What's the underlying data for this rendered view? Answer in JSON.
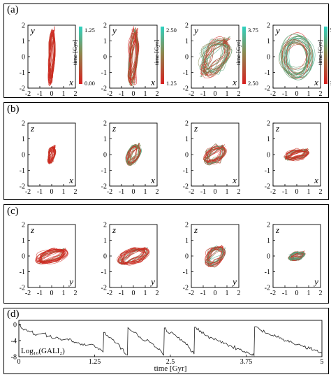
{
  "panels": {
    "a": {
      "tag": "(a)",
      "y_label": "y",
      "x_label": "x",
      "colorbar_label": "time [Gyr]",
      "plots": [
        {
          "cb_top": "1.25",
          "cb_bottom": "0.00"
        },
        {
          "cb_top": "2.50",
          "cb_bottom": "1.25"
        },
        {
          "cb_top": "3.75",
          "cb_bottom": "2.50"
        },
        {
          "cb_top": "5.00",
          "cb_bottom": "3.75"
        }
      ]
    },
    "b": {
      "tag": "(b)",
      "y_label": "z",
      "x_label": "x"
    },
    "c": {
      "tag": "(c)",
      "y_label": "z",
      "x_label": "y"
    },
    "d": {
      "tag": "(d)",
      "inner_label": "Log₁₀(GALI₂)",
      "xlabel": "time [Gyr]",
      "xticks": [
        "0",
        "1.25",
        "2.5",
        "3.75",
        "5"
      ],
      "yticks": [
        "0",
        "-4",
        "-8"
      ]
    },
    "axis_ticks": [
      "-2",
      "-1",
      "0",
      "1",
      "2"
    ]
  },
  "colors": {
    "early": "#d81e1e",
    "late": "#2fb89a",
    "mid": "#8a7a3a",
    "colorbar_top": "#2fd2c0",
    "colorbar_bottom": "#d81e1e"
  },
  "chart_data": {
    "type": "line",
    "title": "",
    "xlabel": "time [Gyr]",
    "ylabel": "Log₁₀(GALI₂)",
    "xlim": [
      0,
      5
    ],
    "ylim": [
      -8,
      1
    ],
    "x": [
      0,
      0.1,
      0.2,
      0.3,
      0.4,
      0.5,
      0.6,
      0.7,
      0.8,
      0.9,
      1.0,
      1.1,
      1.2,
      1.3,
      1.39,
      1.4,
      1.5,
      1.6,
      1.7,
      1.79,
      1.8,
      1.9,
      2.0,
      2.1,
      2.2,
      2.3,
      2.39,
      2.4,
      2.5,
      2.6,
      2.7,
      2.8,
      2.89,
      2.9,
      3.0,
      3.1,
      3.2,
      3.3,
      3.4,
      3.5,
      3.6,
      3.7,
      3.8,
      3.88,
      3.89,
      4.0,
      4.1,
      4.2,
      4.3,
      4.4,
      4.5,
      4.6,
      4.7,
      4.8,
      4.9,
      5.0
    ],
    "series": [
      {
        "values": [
          -0.3,
          -1.2,
          -1.8,
          -2.5,
          -2.2,
          -3.0,
          -3.4,
          -3.9,
          -3.6,
          -4.3,
          -4.7,
          -5.2,
          -4.9,
          -5.8,
          -6.8,
          -2.0,
          -3.3,
          -4.6,
          -6.0,
          -7.6,
          -0.8,
          -2.0,
          -3.1,
          -4.0,
          -4.8,
          -6.2,
          -7.6,
          -0.9,
          -2.1,
          -3.0,
          -4.2,
          -5.6,
          -7.3,
          -0.7,
          -1.6,
          -2.8,
          -3.5,
          -4.2,
          -4.6,
          -5.3,
          -6.0,
          -6.8,
          -7.2,
          -7.7,
          -0.6,
          -1.5,
          -2.2,
          -2.9,
          -3.4,
          -4.0,
          -4.4,
          -5.0,
          -5.5,
          -6.0,
          -6.5,
          -7.2
        ]
      }
    ]
  }
}
